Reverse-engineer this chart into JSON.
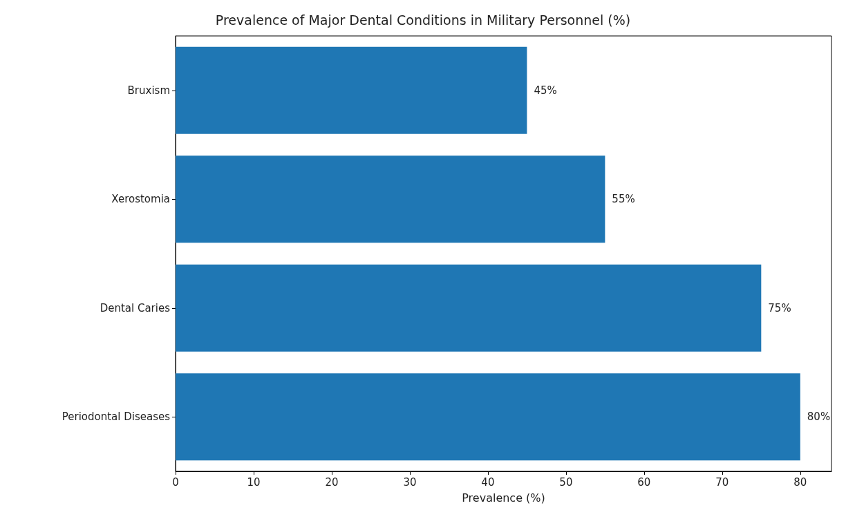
{
  "chart_data": {
    "type": "bar",
    "orientation": "horizontal",
    "title": "Prevalence of Major Dental Conditions in Military Personnel (%)",
    "xlabel": "Prevalence (%)",
    "categories": [
      "Bruxism",
      "Xerostomia",
      "Dental Caries",
      "Periodontal Diseases"
    ],
    "values": [
      45,
      55,
      75,
      80
    ],
    "value_labels": [
      "45%",
      "55%",
      "75%",
      "80%"
    ],
    "color": "#1f77b4",
    "xlim": [
      0,
      84
    ],
    "xticks": [
      0,
      10,
      20,
      30,
      40,
      50,
      60,
      70,
      80
    ],
    "grid": false
  }
}
